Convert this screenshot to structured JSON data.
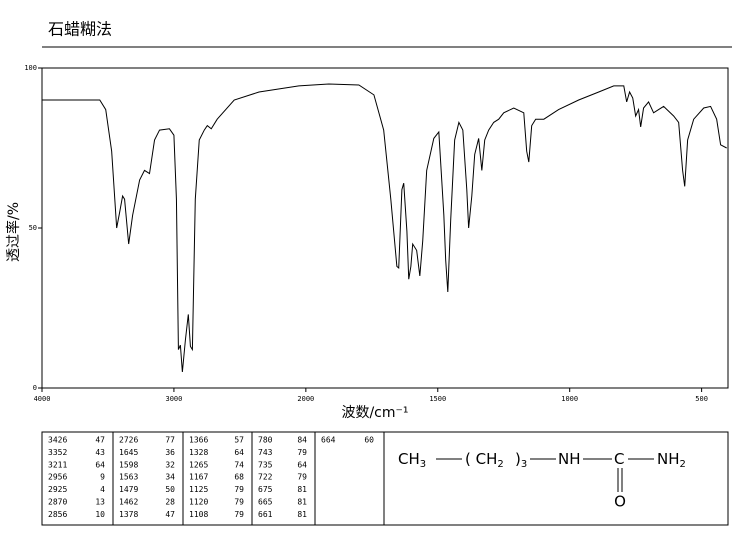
{
  "chart_data": {
    "type": "line",
    "title": "石蜡糊法",
    "x_label": "波数/cm⁻¹",
    "y_label": "透过率/%",
    "color": "#000000",
    "xlim": [
      4000,
      400
    ],
    "ylim": [
      0,
      100
    ],
    "xticks": [
      4000,
      3000,
      2000,
      1500,
      1000,
      500
    ],
    "yticks": [
      0,
      50,
      100
    ],
    "x": [
      4000,
      3562,
      3517,
      3472,
      3434,
      3411,
      3389,
      3374,
      3343,
      3313,
      3260,
      3223,
      3185,
      3147,
      3109,
      3034,
      3000,
      2981,
      2966,
      2951,
      2936,
      2913,
      2891,
      2875,
      2860,
      2838,
      2808,
      2770,
      2747,
      2717,
      2672,
      2543,
      2355,
      2053,
      1913,
      1799,
      1742,
      1705,
      1678,
      1655,
      1648,
      1636,
      1629,
      1617,
      1610,
      1602,
      1595,
      1580,
      1568,
      1557,
      1542,
      1515,
      1496,
      1485,
      1477,
      1470,
      1462,
      1451,
      1436,
      1420,
      1405,
      1390,
      1383,
      1371,
      1360,
      1345,
      1333,
      1322,
      1307,
      1288,
      1269,
      1250,
      1212,
      1174,
      1163,
      1155,
      1144,
      1129,
      1098,
      1042,
      966,
      890,
      833,
      795,
      784,
      773,
      761,
      750,
      739,
      731,
      720,
      701,
      682,
      663,
      644,
      606,
      587,
      572,
      564,
      553,
      530,
      492,
      466,
      443,
      428,
      405
    ],
    "values": [
      90,
      90,
      87,
      74,
      50,
      55,
      60,
      59,
      45,
      54,
      65,
      68,
      67,
      77.5,
      80.6,
      81,
      79,
      59,
      12,
      13.4,
      5,
      15,
      23,
      13,
      12,
      59,
      77.5,
      80.6,
      82,
      81,
      84,
      90,
      92.5,
      94.4,
      95,
      94.7,
      91.6,
      80.6,
      59,
      38,
      37.5,
      62,
      64,
      49,
      34,
      38,
      45,
      43,
      35,
      46,
      68,
      78,
      80,
      65,
      54,
      40,
      30,
      52.5,
      77.5,
      83,
      80.6,
      62,
      50,
      60,
      73,
      78,
      68,
      77.5,
      80.6,
      83,
      84,
      86,
      87.5,
      86,
      74,
      70.6,
      82,
      84,
      84,
      87,
      90,
      92.5,
      94.4,
      94.4,
      89.4,
      92.5,
      90.6,
      85,
      87,
      81.6,
      87.5,
      89.4,
      86,
      87,
      88,
      85,
      83,
      68,
      63,
      77.5,
      84,
      87.5,
      88,
      84,
      76,
      75
    ]
  },
  "peak_table": {
    "columns": [
      [
        [
          "3426",
          "47"
        ],
        [
          "3352",
          "43"
        ],
        [
          "3211",
          "64"
        ],
        [
          "2956",
          "9"
        ],
        [
          "2925",
          "4"
        ],
        [
          "2870",
          "13"
        ],
        [
          "2856",
          "10"
        ]
      ],
      [
        [
          "2726",
          "77"
        ],
        [
          "1645",
          "36"
        ],
        [
          "1598",
          "32"
        ],
        [
          "1563",
          "34"
        ],
        [
          "1479",
          "50"
        ],
        [
          "1462",
          "28"
        ],
        [
          "1378",
          "47"
        ]
      ],
      [
        [
          "1366",
          "57"
        ],
        [
          "1328",
          "64"
        ],
        [
          "1265",
          "74"
        ],
        [
          "1167",
          "68"
        ],
        [
          "1125",
          "79"
        ],
        [
          "1120",
          "79"
        ],
        [
          "1108",
          "79"
        ]
      ],
      [
        [
          "780",
          "84"
        ],
        [
          "743",
          "79"
        ],
        [
          "735",
          "64"
        ],
        [
          "722",
          "79"
        ],
        [
          "675",
          "81"
        ],
        [
          "665",
          "81"
        ],
        [
          "661",
          "81"
        ]
      ],
      [
        [
          "664",
          "60"
        ]
      ]
    ]
  },
  "structure": {
    "groups": [
      {
        "text": "CH",
        "sub": "3"
      },
      {
        "text": "( CH",
        "sub": "2"
      },
      {
        "text": ")",
        "sub": "3"
      },
      {
        "text": "NH"
      },
      {
        "text": "C"
      },
      {
        "text": "NH",
        "sub": "2"
      }
    ],
    "carbonyl_o": "O"
  }
}
